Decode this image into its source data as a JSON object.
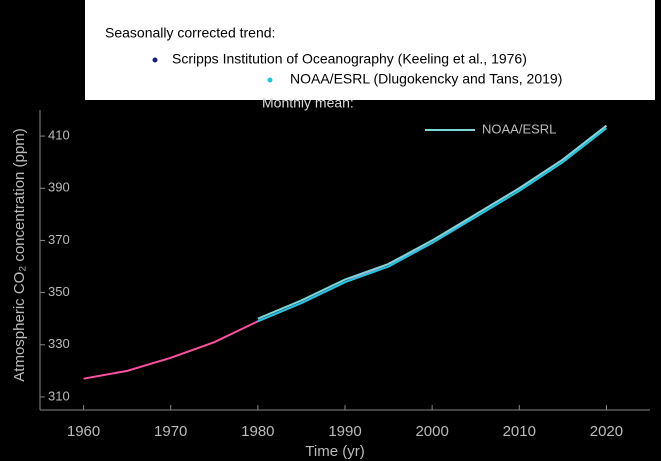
{
  "chart_data": {
    "type": "line",
    "ylabel": "Atmospheric CO₂ concentration (ppm)",
    "xlabel": "Time (yr)",
    "legend_titles": [
      "Seasonally corrected trend:",
      "Monthly mean:"
    ],
    "x": [
      1960,
      1965,
      1970,
      1975,
      1980,
      1985,
      1990,
      1995,
      2000,
      2005,
      2010,
      2015,
      2020
    ],
    "xlim": [
      1955,
      2025
    ],
    "xticks": [
      1960,
      1970,
      1980,
      1990,
      2000,
      2010,
      2020
    ],
    "ylim": [
      305,
      420
    ],
    "yticks": [
      310,
      330,
      350,
      370,
      390,
      410
    ],
    "grid": false,
    "series": [
      {
        "name": "Scripps Institution of Oceanography (Keeling et al., 1976)",
        "color": "#1a1a8c",
        "values": [
          317,
          320,
          325,
          331,
          339,
          346,
          354,
          361,
          369,
          380,
          390,
          401,
          414
        ]
      },
      {
        "name": "NOAA/ESRL (Dlugokencky and Tans, 2019)",
        "color": "#19c8e6",
        "values": [
          null,
          null,
          null,
          null,
          339,
          346,
          354,
          360,
          369,
          379,
          389,
          400,
          413
        ]
      },
      {
        "name": "NOAA/ESRL",
        "color": "#7fd6d6",
        "values": [
          null,
          null,
          null,
          null,
          340,
          347,
          355,
          361,
          370,
          380,
          390,
          401,
          414
        ]
      }
    ]
  }
}
